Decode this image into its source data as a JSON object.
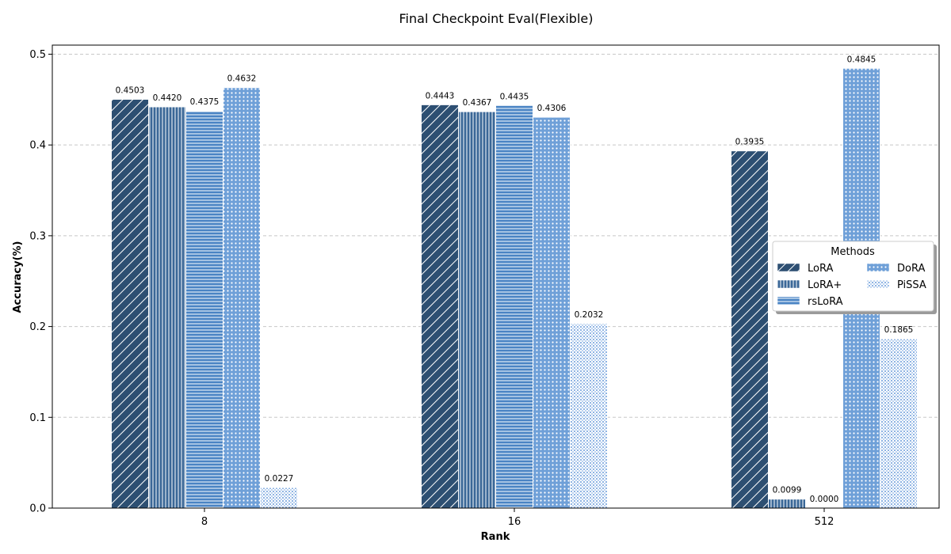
{
  "chart_data": {
    "type": "bar",
    "title": "Final Checkpoint Eval(Flexible)",
    "xlabel": "Rank",
    "ylabel": "Accuracy(%)",
    "categories": [
      "8",
      "16",
      "512"
    ],
    "ylim": [
      0,
      0.51
    ],
    "yticks": [
      "0.0",
      "0.1",
      "0.2",
      "0.3",
      "0.4",
      "0.5"
    ],
    "grid": "y-dashed",
    "legend": {
      "title": "Methods",
      "placement": "right"
    },
    "series": [
      {
        "name": "LoRA",
        "values": [
          0.4503,
          0.4443,
          0.3935
        ],
        "labels": [
          "0.4503",
          "0.4443",
          "0.3935"
        ],
        "color": "#2d4f72",
        "pattern": "diagonal"
      },
      {
        "name": "LoRA+",
        "values": [
          0.442,
          0.4367,
          0.0099
        ],
        "labels": [
          "0.4420",
          "0.4367",
          "0.0099"
        ],
        "color": "#3a6797",
        "pattern": "vertical"
      },
      {
        "name": "rsLoRA",
        "values": [
          0.4375,
          0.4435,
          0.0
        ],
        "labels": [
          "0.4375",
          "0.4435",
          "0.0000"
        ],
        "color": "#4a84c4",
        "pattern": "horizontal"
      },
      {
        "name": "DoRA",
        "values": [
          0.4632,
          0.4306,
          0.4845
        ],
        "labels": [
          "0.4632",
          "0.4306",
          "0.4845"
        ],
        "color": "#6fa0d8",
        "pattern": "dots"
      },
      {
        "name": "PiSSA",
        "values": [
          0.0227,
          0.2032,
          0.1865
        ],
        "labels": [
          "0.0227",
          "0.2032",
          "0.1865"
        ],
        "color": "#a9c6ea",
        "pattern": "grid"
      }
    ]
  }
}
